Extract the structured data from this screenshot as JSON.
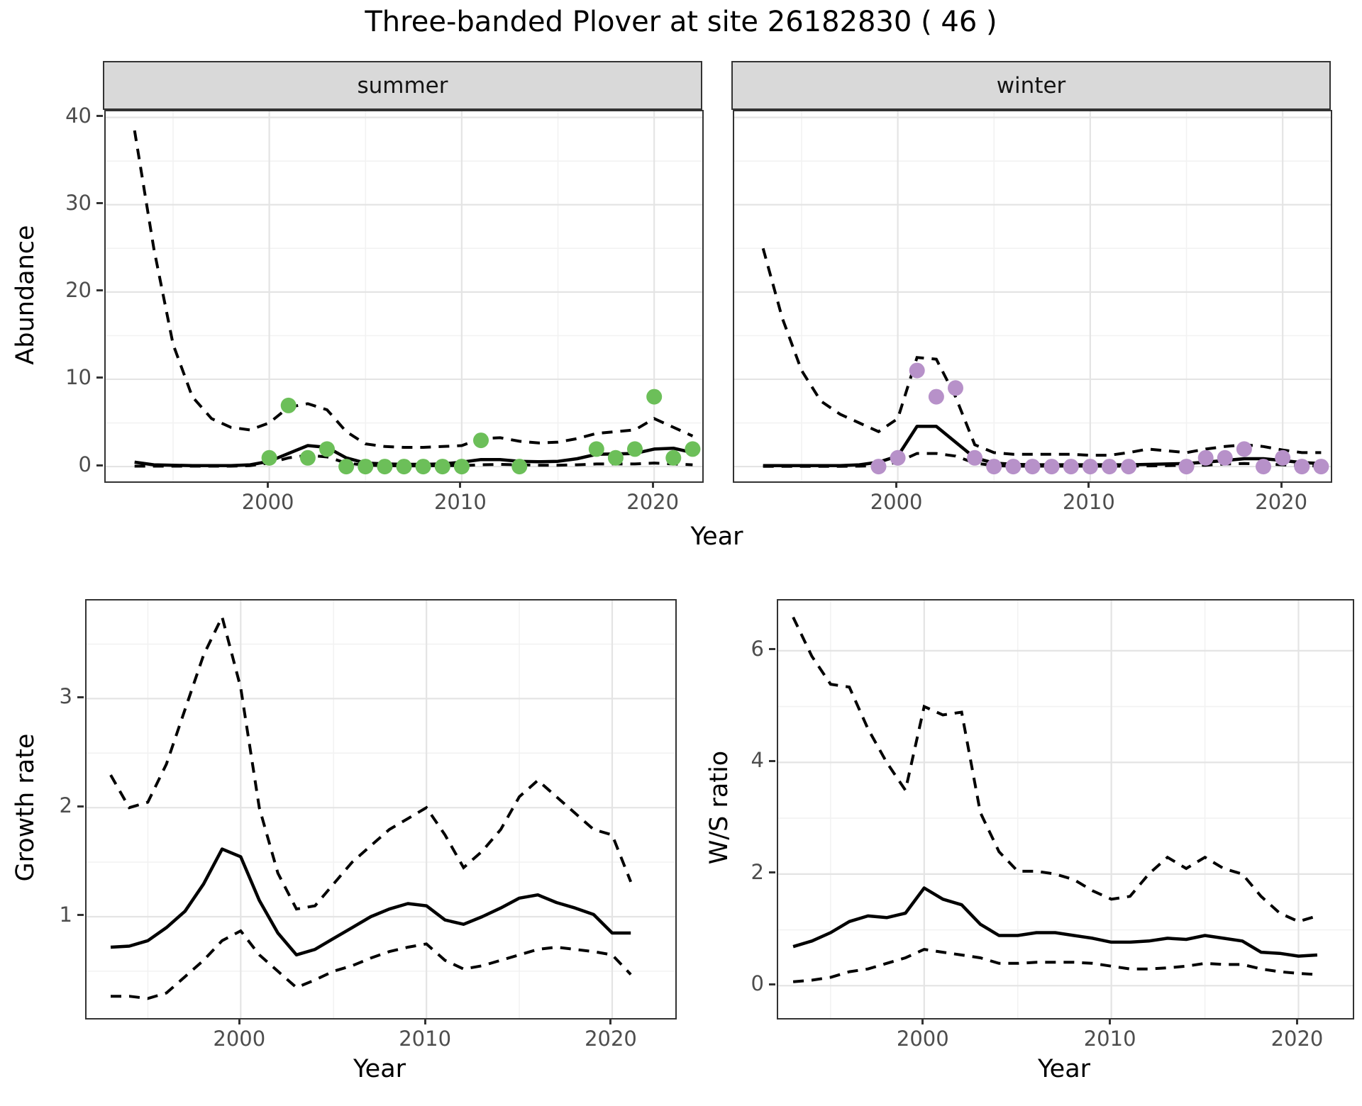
{
  "title": "Three-banded Plover at site 26182830 ( 46 )",
  "colors": {
    "summer_point": "#6cbf59",
    "winter_point": "#b791c9",
    "line": "#000000",
    "strip_bg": "#d9d9d9",
    "panel_border": "#333333",
    "grid_major": "#e4e4e4",
    "grid_minor": "#f2f2f2",
    "axis_text": "#4d4d4d",
    "title_text": "#000000"
  },
  "chart_data": [
    {
      "id": "abundance_summer",
      "type": "line",
      "facet_label": "summer",
      "xlabel": "Year",
      "ylabel": "Abundance",
      "xlim": [
        1991.5,
        2022.5
      ],
      "ylim": [
        -1.7,
        40.7
      ],
      "x_ticks": [
        2000,
        2010,
        2020
      ],
      "y_ticks": [
        0,
        10,
        20,
        30,
        40
      ],
      "x_minor": [
        1995,
        2005,
        2015
      ],
      "y_minor": [
        5,
        15,
        25,
        35
      ],
      "show_y_labels": true,
      "legend": "solid = model fit, dashed = 95% CI, dots = observed counts",
      "x": [
        1993,
        1994,
        1995,
        1996,
        1997,
        1998,
        1999,
        2000,
        2001,
        2002,
        2003,
        2004,
        2005,
        2006,
        2007,
        2008,
        2009,
        2010,
        2011,
        2012,
        2013,
        2014,
        2015,
        2016,
        2017,
        2018,
        2019,
        2020,
        2021,
        2022
      ],
      "fit": [
        0.5,
        0.2,
        0.15,
        0.1,
        0.1,
        0.1,
        0.2,
        0.6,
        1.5,
        2.4,
        2.2,
        1.0,
        0.4,
        0.3,
        0.25,
        0.25,
        0.3,
        0.5,
        0.8,
        0.8,
        0.6,
        0.55,
        0.6,
        0.9,
        1.4,
        1.45,
        1.5,
        2.0,
        2.1,
        1.6
      ],
      "hi": [
        38.5,
        25,
        14,
        8,
        5.5,
        4.5,
        4.2,
        5.0,
        6.8,
        7.2,
        6.5,
        4.0,
        2.6,
        2.3,
        2.2,
        2.2,
        2.3,
        2.4,
        3.2,
        3.3,
        2.9,
        2.7,
        2.8,
        3.2,
        3.8,
        4.0,
        4.2,
        5.5,
        4.5,
        3.5
      ],
      "lo": [
        0.05,
        0.05,
        0.05,
        0.05,
        0.05,
        0.05,
        0.1,
        0.4,
        1.0,
        1.3,
        1.1,
        0.4,
        0.15,
        0.1,
        0.08,
        0.08,
        0.1,
        0.1,
        0.2,
        0.25,
        0.2,
        0.15,
        0.15,
        0.2,
        0.3,
        0.3,
        0.3,
        0.4,
        0.3,
        0.2
      ],
      "points": {
        "color_key": "summer_point",
        "x": [
          2000,
          2001,
          2002,
          2003,
          2004,
          2005,
          2006,
          2007,
          2008,
          2009,
          2010,
          2011,
          2013,
          2017,
          2018,
          2019,
          2020,
          2021,
          2022
        ],
        "y": [
          1,
          7,
          1,
          2,
          0,
          0,
          0,
          0,
          0,
          0,
          0,
          3,
          0,
          2,
          1,
          2,
          8,
          1,
          2
        ]
      }
    },
    {
      "id": "abundance_winter",
      "type": "line",
      "facet_label": "winter",
      "xlabel": "Year",
      "ylabel": "Abundance",
      "xlim": [
        1991.5,
        2022.5
      ],
      "ylim": [
        -1.7,
        40.7
      ],
      "x_ticks": [
        2000,
        2010,
        2020
      ],
      "y_ticks": [
        0,
        10,
        20,
        30,
        40
      ],
      "x_minor": [
        1995,
        2005,
        2015
      ],
      "y_minor": [
        5,
        15,
        25,
        35
      ],
      "show_y_labels": false,
      "legend": "solid = model fit, dashed = 95% CI, dots = observed counts",
      "x": [
        1993,
        1994,
        1995,
        1996,
        1997,
        1998,
        1999,
        2000,
        2001,
        2002,
        2003,
        2004,
        2005,
        2006,
        2007,
        2008,
        2009,
        2010,
        2011,
        2012,
        2013,
        2014,
        2015,
        2016,
        2017,
        2018,
        2019,
        2020,
        2021,
        2022
      ],
      "fit": [
        0.1,
        0.1,
        0.1,
        0.1,
        0.1,
        0.2,
        0.5,
        1.2,
        4.6,
        4.6,
        2.8,
        1.0,
        0.4,
        0.25,
        0.2,
        0.2,
        0.2,
        0.2,
        0.2,
        0.2,
        0.25,
        0.3,
        0.35,
        0.5,
        0.7,
        0.9,
        0.9,
        0.7,
        0.45,
        0.35
      ],
      "hi": [
        25,
        17,
        11,
        7.5,
        6,
        5,
        4,
        5.5,
        12.5,
        12.3,
        8,
        2.5,
        1.6,
        1.4,
        1.4,
        1.4,
        1.4,
        1.3,
        1.3,
        1.6,
        2.0,
        1.8,
        1.6,
        2.0,
        2.3,
        2.5,
        2.3,
        1.9,
        1.6,
        1.6
      ],
      "lo": [
        0.02,
        0.02,
        0.02,
        0.02,
        0.02,
        0.05,
        0.1,
        0.5,
        1.5,
        1.5,
        1.2,
        0.4,
        0.1,
        0.05,
        0.05,
        0.05,
        0.05,
        0.05,
        0.05,
        0.05,
        0.08,
        0.1,
        0.15,
        0.15,
        0.3,
        0.35,
        0.3,
        0.2,
        0.1,
        0.05
      ],
      "points": {
        "color_key": "winter_point",
        "x": [
          1999,
          2000,
          2001,
          2002,
          2003,
          2004,
          2005,
          2006,
          2007,
          2008,
          2009,
          2010,
          2011,
          2012,
          2015,
          2016,
          2017,
          2018,
          2019,
          2020,
          2021,
          2022
        ],
        "y": [
          0,
          1,
          11,
          8,
          9,
          1,
          0,
          0,
          0,
          0,
          0,
          0,
          0,
          0,
          0,
          1,
          1,
          2,
          0,
          1,
          0,
          0
        ]
      }
    },
    {
      "id": "growth_rate",
      "type": "line",
      "facet_label": "",
      "xlabel": "Year",
      "ylabel": "Growth rate",
      "xlim": [
        1991.7,
        2023.4
      ],
      "ylim": [
        0.07,
        3.9
      ],
      "x_ticks": [
        2000,
        2010,
        2020
      ],
      "y_ticks": [
        1,
        2,
        3
      ],
      "x_minor": [
        1995,
        2005,
        2015
      ],
      "y_minor": [
        0.5,
        1.5,
        2.5,
        3.5
      ],
      "show_y_labels": true,
      "legend": "solid = median growth rate, dashed = 95% CI",
      "x": [
        1993,
        1994,
        1995,
        1996,
        1997,
        1998,
        1999,
        2000,
        2001,
        2002,
        2003,
        2004,
        2005,
        2006,
        2007,
        2008,
        2009,
        2010,
        2011,
        2012,
        2013,
        2014,
        2015,
        2016,
        2017,
        2018,
        2019,
        2020,
        2021
      ],
      "fit": [
        0.72,
        0.73,
        0.78,
        0.9,
        1.05,
        1.3,
        1.62,
        1.55,
        1.15,
        0.85,
        0.65,
        0.7,
        0.8,
        0.9,
        1.0,
        1.07,
        1.12,
        1.1,
        0.97,
        0.93,
        1.0,
        1.08,
        1.17,
        1.2,
        1.13,
        1.08,
        1.02,
        0.85,
        0.85
      ],
      "hi": [
        2.3,
        2.0,
        2.05,
        2.4,
        2.9,
        3.4,
        3.75,
        3.1,
        2.0,
        1.4,
        1.07,
        1.1,
        1.3,
        1.5,
        1.65,
        1.8,
        1.9,
        2.0,
        1.75,
        1.45,
        1.6,
        1.8,
        2.1,
        2.25,
        2.1,
        1.95,
        1.8,
        1.75,
        1.32
      ],
      "lo": [
        0.27,
        0.27,
        0.25,
        0.3,
        0.45,
        0.6,
        0.78,
        0.87,
        0.65,
        0.5,
        0.35,
        0.42,
        0.5,
        0.55,
        0.62,
        0.68,
        0.72,
        0.75,
        0.6,
        0.52,
        0.55,
        0.6,
        0.65,
        0.7,
        0.72,
        0.7,
        0.68,
        0.65,
        0.47
      ]
    },
    {
      "id": "ws_ratio",
      "type": "line",
      "facet_label": "",
      "xlabel": "Year",
      "ylabel": "W/S ratio",
      "xlim": [
        1992.2,
        2022.9
      ],
      "ylim": [
        -0.58,
        6.9
      ],
      "x_ticks": [
        2000,
        2010,
        2020
      ],
      "y_ticks": [
        0,
        2,
        4,
        6
      ],
      "x_minor": [
        1995,
        2005,
        2015
      ],
      "y_minor": [
        1,
        3,
        5
      ],
      "show_y_labels": true,
      "legend": "solid = median winter/summer ratio, dashed = 95% CI",
      "x": [
        1993,
        1994,
        1995,
        1996,
        1997,
        1998,
        1999,
        2000,
        2001,
        2002,
        2003,
        2004,
        2005,
        2006,
        2007,
        2008,
        2009,
        2010,
        2011,
        2012,
        2013,
        2014,
        2015,
        2016,
        2017,
        2018,
        2019,
        2020,
        2021
      ],
      "fit": [
        0.7,
        0.8,
        0.95,
        1.15,
        1.25,
        1.22,
        1.3,
        1.75,
        1.55,
        1.45,
        1.1,
        0.9,
        0.9,
        0.95,
        0.95,
        0.9,
        0.85,
        0.78,
        0.78,
        0.8,
        0.85,
        0.83,
        0.9,
        0.85,
        0.8,
        0.6,
        0.58,
        0.53,
        0.55
      ],
      "hi": [
        6.6,
        5.9,
        5.4,
        5.35,
        4.6,
        4.0,
        3.5,
        5.0,
        4.85,
        4.9,
        3.1,
        2.4,
        2.05,
        2.05,
        2.0,
        1.9,
        1.7,
        1.55,
        1.6,
        2.0,
        2.3,
        2.1,
        2.3,
        2.1,
        2.0,
        1.6,
        1.3,
        1.15,
        1.25
      ],
      "lo": [
        0.07,
        0.1,
        0.15,
        0.25,
        0.3,
        0.4,
        0.5,
        0.65,
        0.6,
        0.55,
        0.5,
        0.4,
        0.4,
        0.42,
        0.42,
        0.42,
        0.4,
        0.35,
        0.3,
        0.3,
        0.32,
        0.35,
        0.4,
        0.38,
        0.38,
        0.3,
        0.25,
        0.22,
        0.2
      ]
    }
  ]
}
